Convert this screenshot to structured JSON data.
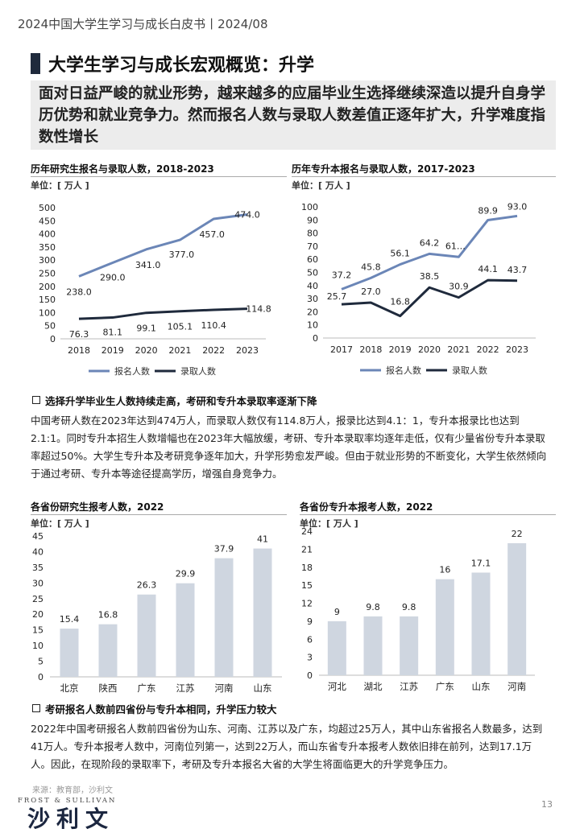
{
  "header": {
    "report_title": "2024中国大学生学习与成长白皮书丨2024/08"
  },
  "page": {
    "title": "大学生学习与成长宏观概览：升学",
    "subtitle": "面对日益严峻的就业形势，越来越多的应届毕业生选择继续深造以提升自身学历优势和就业竞争力。然而报名人数与录取人数差值正逐年扩大，升学难度指数性增长"
  },
  "colors": {
    "accent": "#1f2a3c",
    "series_register": "#6b86b7",
    "series_admit": "#1f2a3c",
    "bar": "#cfd6e0"
  },
  "chart1": {
    "title": "历年研究生报名与录取人数，2018-2023",
    "unit": "单位：[ 万人 ]"
  },
  "chart2": {
    "title": "历年专升本报名与录取人数，2017-2023",
    "unit": "单位：[ 万人 ]"
  },
  "chart3": {
    "title": "各省份研究生报考人数，2022",
    "unit": "单位：[ 万人 ]"
  },
  "chart4": {
    "title": "各省份专升本报考人数，2022",
    "unit": "单位：[ 万人 ]"
  },
  "section1": {
    "heading": "选择升学毕业生人数持续走高，考研和专升本录取率逐渐下降",
    "paragraph": "中国考研人数在2023年达到474万人，而录取人数仅有114.8万人，报录比达到4.1：1，专升本报录比也达到2.1:1。同时专升本招生人数增幅也在2023年大幅放缓，考研、专升本录取率均逐年走低，仅有少量省份专升本录取率超过50%。大学生专升本及考研竞争逐年加大，升学形势愈发严峻。但由于就业形势的不断变化，大学生依然倾向于通过考研、专升本等途径提高学历，增强自身竞争力。"
  },
  "section2": {
    "heading": "考研报名人数前四省份与专升本相同，升学压力较大",
    "paragraph": "2022年中国考研报名人数前四省份为山东、河南、江苏以及广东，均超过25万人，其中山东省报名人数最多，达到41万人。专升本报考人数中，河南位列第一，达到22万人，而山东省专升本报考人数依旧排在前列，达到17.1万人。因此，在现阶段的录取率下，考研及专升本报名大省的大学生将面临更大的升学竞争压力。"
  },
  "footer": {
    "source": "来源：教育部，沙利文",
    "brand_en": "FROST & SULLIVAN",
    "brand_cn": "沙利文",
    "page_number": "13"
  },
  "chart_data": [
    {
      "type": "line",
      "title": "历年研究生报名与录取人数，2018-2023",
      "unit": "万人",
      "x": [
        "2018",
        "2019",
        "2020",
        "2021",
        "2022",
        "2023"
      ],
      "ylim": [
        0,
        500
      ],
      "yticks": [
        0,
        50,
        100,
        150,
        200,
        250,
        300,
        350,
        400,
        450,
        500
      ],
      "series": [
        {
          "name": "报名人数",
          "values": [
            238.0,
            290.0,
            341.0,
            377.0,
            457.0,
            474.0
          ],
          "labels": [
            "238.0",
            "290.0",
            "341.0",
            "377.0",
            "457.0",
            "474.0"
          ]
        },
        {
          "name": "录取人数",
          "values": [
            76.3,
            81.1,
            99.1,
            105.1,
            110.4,
            114.8
          ],
          "labels": [
            "76.3",
            "81.1",
            "99.1",
            "105.1",
            "110.4",
            "114.8"
          ]
        }
      ]
    },
    {
      "type": "line",
      "title": "历年专升本报名与录取人数，2017-2023",
      "unit": "万人",
      "x": [
        "2017",
        "2018",
        "2019",
        "2020",
        "2021",
        "2022",
        "2023"
      ],
      "ylim": [
        0,
        100
      ],
      "yticks": [
        0,
        10,
        20,
        30,
        40,
        50,
        60,
        70,
        80,
        90,
        100
      ],
      "series": [
        {
          "name": "报名人数",
          "values": [
            37.2,
            45.8,
            56.1,
            64.2,
            61.8,
            89.9,
            93.0
          ],
          "labels": [
            "37.2",
            "45.8",
            "56.1",
            "64.2",
            "61…",
            "89.9",
            "93.0"
          ]
        },
        {
          "name": "录取人数",
          "values": [
            25.7,
            27.0,
            16.8,
            38.5,
            30.9,
            44.1,
            43.7
          ],
          "labels": [
            "25.7",
            "27.0",
            "16.8",
            "38.5",
            "30.9",
            "44.1",
            "43.7"
          ]
        }
      ]
    },
    {
      "type": "bar",
      "title": "各省份研究生报考人数，2022",
      "unit": "万人",
      "categories": [
        "北京",
        "陕西",
        "广东",
        "江苏",
        "河南",
        "山东"
      ],
      "values": [
        15.4,
        16.8,
        26.3,
        29.9,
        37.9,
        41
      ],
      "labels": [
        "15.4",
        "16.8",
        "26.3",
        "29.9",
        "37.9",
        "41"
      ],
      "ylim": [
        0,
        45
      ],
      "yticks": [
        0,
        5,
        10,
        15,
        20,
        25,
        30,
        35,
        40,
        45
      ]
    },
    {
      "type": "bar",
      "title": "各省份专升本报考人数，2022",
      "unit": "万人",
      "categories": [
        "河北",
        "湖北",
        "江苏",
        "广东",
        "山东",
        "河南"
      ],
      "values": [
        9,
        9.8,
        9.8,
        16,
        17.1,
        22
      ],
      "labels": [
        "9",
        "9.8",
        "9.8",
        "16",
        "17.1",
        "22"
      ],
      "ylim": [
        0,
        24
      ],
      "yticks": [
        0,
        3,
        6,
        9,
        12,
        15,
        18,
        21,
        24
      ]
    }
  ]
}
